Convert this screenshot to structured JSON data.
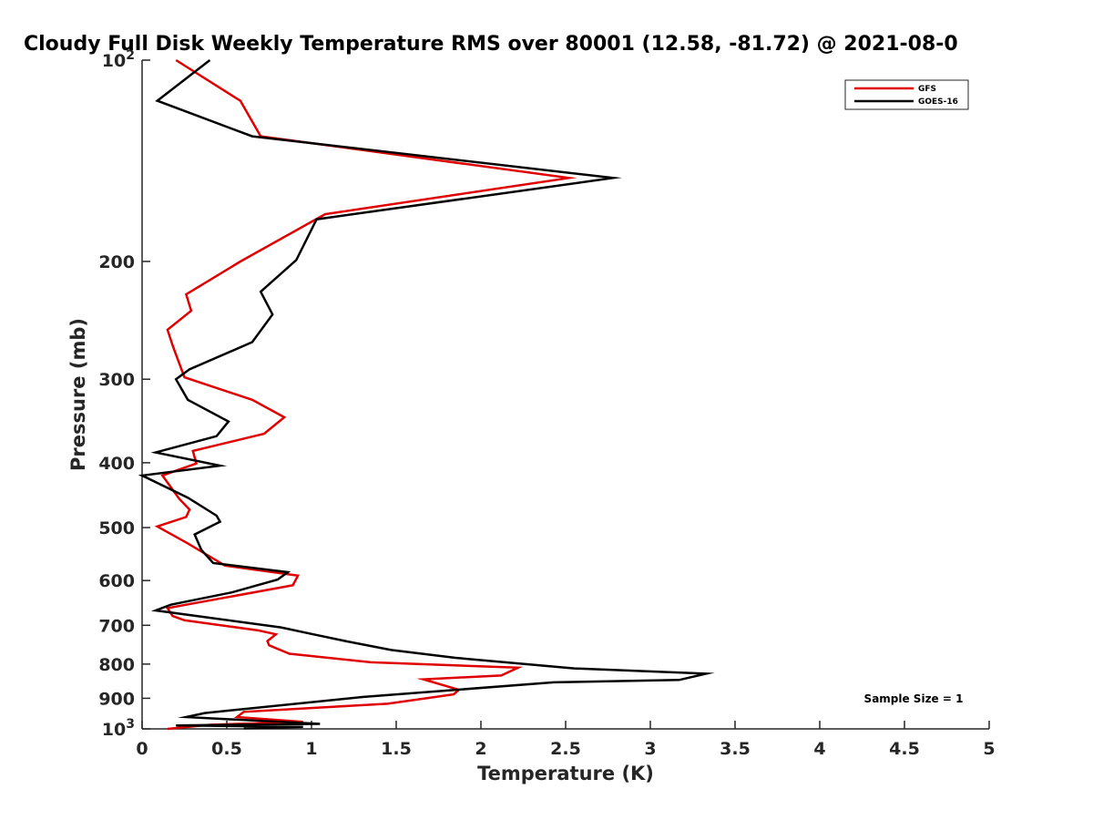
{
  "chart_data": {
    "type": "line",
    "title": "Cloudy Full Disk Weekly Temperature RMS over 80001 (12.58, -81.72) @ 2021-08-0",
    "xlabel": "Temperature (K)",
    "ylabel": "Pressure (mb)",
    "xlim": [
      0,
      5
    ],
    "ylim": [
      100,
      1000
    ],
    "yscale": "log",
    "y_reversed": true,
    "x_ticks": [
      "0",
      "0.5",
      "1",
      "1.5",
      "2",
      "2.5",
      "3",
      "3.5",
      "4",
      "4.5",
      "5"
    ],
    "y_ticks": [
      {
        "value": 100,
        "base": "10",
        "exp": "2"
      },
      {
        "value": 200,
        "label": "200"
      },
      {
        "value": 300,
        "label": "300"
      },
      {
        "value": 400,
        "label": "400"
      },
      {
        "value": 500,
        "label": "500"
      },
      {
        "value": 600,
        "label": "600"
      },
      {
        "value": 700,
        "label": "700"
      },
      {
        "value": 800,
        "label": "800"
      },
      {
        "value": 900,
        "label": "900"
      },
      {
        "value": 1000,
        "base": "10",
        "exp": "3"
      }
    ],
    "grid": false,
    "legend_position": "top-right",
    "annotation": "Sample Size = 1",
    "series": [
      {
        "name": "GFS",
        "color": "#e00000",
        "points": [
          [
            0.2,
            100
          ],
          [
            0.58,
            115
          ],
          [
            0.7,
            130
          ],
          [
            2.52,
            150
          ],
          [
            1.08,
            170
          ],
          [
            0.58,
            200
          ],
          [
            0.26,
            224
          ],
          [
            0.29,
            237
          ],
          [
            0.15,
            253
          ],
          [
            0.18,
            267
          ],
          [
            0.25,
            298
          ],
          [
            0.65,
            322
          ],
          [
            0.84,
            342
          ],
          [
            0.72,
            362
          ],
          [
            0.3,
            384
          ],
          [
            0.32,
            401
          ],
          [
            0.12,
            418
          ],
          [
            0.22,
            453
          ],
          [
            0.28,
            470
          ],
          [
            0.26,
            482
          ],
          [
            0.09,
            498
          ],
          [
            0.27,
            528
          ],
          [
            0.49,
            570
          ],
          [
            0.92,
            590
          ],
          [
            0.89,
            610
          ],
          [
            0.26,
            652
          ],
          [
            0.15,
            660
          ],
          [
            0.18,
            678
          ],
          [
            0.25,
            688
          ],
          [
            0.68,
            712
          ],
          [
            0.79,
            722
          ],
          [
            0.74,
            739
          ],
          [
            0.75,
            750
          ],
          [
            0.87,
            772
          ],
          [
            1.35,
            795
          ],
          [
            2.22,
            810
          ],
          [
            2.12,
            832
          ],
          [
            1.66,
            843
          ],
          [
            1.87,
            874
          ],
          [
            1.84,
            888
          ],
          [
            1.45,
            917
          ],
          [
            1.08,
            928
          ],
          [
            0.6,
            943
          ],
          [
            0.56,
            960
          ],
          [
            0.95,
            976
          ],
          [
            0.4,
            986
          ],
          [
            0.15,
            1000
          ]
        ]
      },
      {
        "name": "GOES-16",
        "color": "#000000",
        "points": [
          [
            0.4,
            100
          ],
          [
            0.09,
            115
          ],
          [
            0.65,
            130
          ],
          [
            2.78,
            150
          ],
          [
            1.03,
            173
          ],
          [
            0.91,
            199
          ],
          [
            0.7,
            222
          ],
          [
            0.77,
            240
          ],
          [
            0.65,
            264
          ],
          [
            0.28,
            290
          ],
          [
            0.2,
            300
          ],
          [
            0.27,
            322
          ],
          [
            0.51,
            347
          ],
          [
            0.44,
            365
          ],
          [
            0.08,
            386
          ],
          [
            0.46,
            404
          ],
          [
            0.0,
            418
          ],
          [
            0.27,
            451
          ],
          [
            0.44,
            480
          ],
          [
            0.46,
            490
          ],
          [
            0.31,
            512
          ],
          [
            0.35,
            540
          ],
          [
            0.42,
            565
          ],
          [
            0.86,
            583
          ],
          [
            0.8,
            598
          ],
          [
            0.53,
            625
          ],
          [
            0.17,
            652
          ],
          [
            0.08,
            665
          ],
          [
            0.82,
            705
          ],
          [
            1.01,
            722
          ],
          [
            1.21,
            740
          ],
          [
            1.47,
            762
          ],
          [
            1.85,
            783
          ],
          [
            2.55,
            812
          ],
          [
            3.33,
            827
          ],
          [
            3.17,
            845
          ],
          [
            2.43,
            852
          ],
          [
            1.3,
            896
          ],
          [
            0.37,
            947
          ],
          [
            0.26,
            960
          ],
          [
            1.05,
            983
          ],
          [
            0.2,
            988
          ],
          [
            0.95,
            993
          ],
          [
            0.6,
            998
          ]
        ]
      }
    ]
  }
}
